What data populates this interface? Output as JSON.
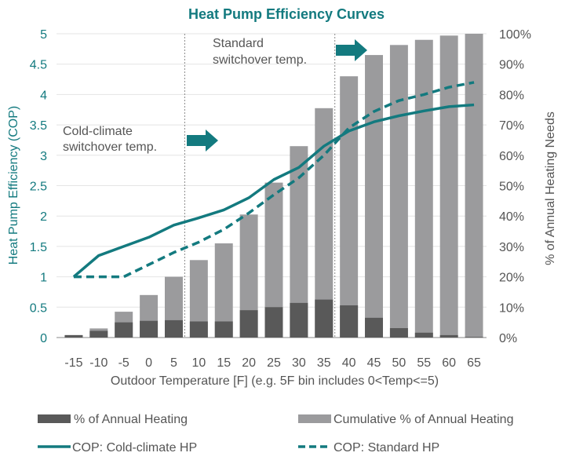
{
  "chart_data": {
    "type": "bar",
    "title": "Heat Pump Efficiency Curves",
    "xlabel": "Outdoor Temperature [F] (e.g. 5F bin includes 0<Temp<=5)",
    "ylabel_left": "Heat Pump Efficiency (COP)",
    "ylabel_right": "% of Annual Heating Needs",
    "categories": [
      "-15",
      "-10",
      "-5",
      "0",
      "5",
      "10",
      "15",
      "20",
      "25",
      "30",
      "35",
      "40",
      "45",
      "50",
      "55",
      "60",
      "65"
    ],
    "ylim_left": [
      0,
      5
    ],
    "yticks_left": [
      "0",
      "0.5",
      "1",
      "1.5",
      "2",
      "2.5",
      "3",
      "3.5",
      "4",
      "4.5",
      "5"
    ],
    "ylim_right": [
      0,
      100
    ],
    "yticks_right": [
      "0%",
      "10%",
      "20%",
      "30%",
      "40%",
      "50%",
      "60%",
      "70%",
      "80%",
      "90%",
      "100%"
    ],
    "grid": true,
    "legend_position": "bottom",
    "series": [
      {
        "name": "% of Annual Heating",
        "kind": "bar",
        "axis": "right",
        "color": "#595959",
        "values": [
          0.8,
          2.2,
          5.0,
          5.5,
          5.7,
          5.3,
          5.3,
          9.0,
          10.0,
          11.4,
          12.5,
          10.6,
          6.5,
          3.1,
          1.6,
          0.8,
          0.2
        ]
      },
      {
        "name": "Cumulative % of Annual Heating",
        "kind": "bar",
        "axis": "right",
        "color": "#9b9b9d",
        "values": [
          0.8,
          3.0,
          8.5,
          14.0,
          20.0,
          25.5,
          31.0,
          40.5,
          51.0,
          63.0,
          75.5,
          86.0,
          93.0,
          96.3,
          98.0,
          99.4,
          100.0
        ]
      },
      {
        "name": "COP: Cold-climate HP",
        "kind": "line",
        "style": "solid",
        "axis": "left",
        "color": "#137a7f",
        "values": [
          1.0,
          1.35,
          1.5,
          1.65,
          1.85,
          1.97,
          2.1,
          2.3,
          2.6,
          2.8,
          3.15,
          3.4,
          3.55,
          3.65,
          3.73,
          3.8,
          3.83
        ]
      },
      {
        "name": "COP: Standard HP",
        "kind": "line",
        "style": "dashed",
        "axis": "left",
        "color": "#137a7f",
        "values": [
          1.0,
          1.0,
          1.0,
          1.2,
          1.4,
          1.57,
          1.78,
          2.05,
          2.35,
          2.63,
          3.0,
          3.45,
          3.72,
          3.9,
          4.0,
          4.12,
          4.2
        ]
      }
    ],
    "annotations": [
      {
        "text_lines": [
          "Cold-climate",
          "switchover temp."
        ],
        "marker_after_category": "5"
      },
      {
        "text_lines": [
          "Standard",
          "switchover temp."
        ],
        "marker_after_category": "35"
      }
    ]
  }
}
